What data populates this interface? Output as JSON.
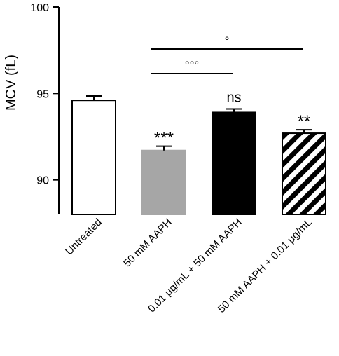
{
  "chart_data": {
    "type": "bar",
    "ylabel": "MCV (fL)",
    "xlabel": "",
    "title": "",
    "ylim": [
      88,
      100
    ],
    "yticks": [
      90,
      95,
      100
    ],
    "categories": [
      "Untreated",
      "50 mM AAPH",
      "0.01 μg/mL + 50 mM AAPH",
      "50 mM AAPH + 0.01 μg/mL"
    ],
    "values": [
      94.6,
      91.7,
      93.9,
      92.7
    ],
    "errors": [
      0.25,
      0.25,
      0.2,
      0.2
    ],
    "fills": [
      "white",
      "gray",
      "black",
      "hatched"
    ],
    "annotations": [
      "",
      "***",
      "ns",
      "**"
    ],
    "brackets": [
      {
        "from": 1,
        "to": 2,
        "label": "°°°"
      },
      {
        "from": 1,
        "to": 3,
        "label": "°"
      }
    ],
    "colors": {
      "gray": "#a6a6a6",
      "black": "#000000",
      "white": "#ffffff"
    }
  }
}
